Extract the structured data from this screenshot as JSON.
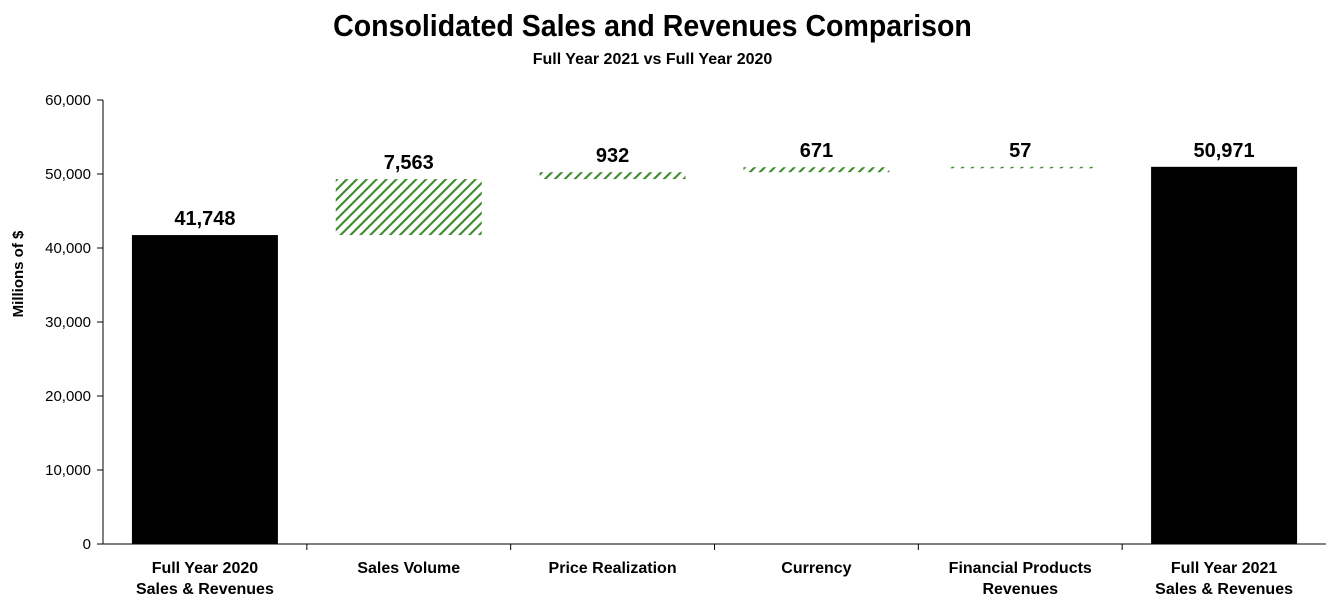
{
  "chart_data": {
    "type": "bar",
    "subtype": "waterfall",
    "title": "Consolidated Sales and Revenues Comparison",
    "subtitle": "Full Year 2021 vs Full Year 2020",
    "xlabel": "",
    "ylabel": "Millions of $",
    "ylim": [
      0,
      60000
    ],
    "yticks": [
      0,
      10000,
      20000,
      30000,
      40000,
      50000,
      60000
    ],
    "ytick_labels": [
      "0",
      "10,000",
      "20,000",
      "30,000",
      "40,000",
      "50,000",
      "60,000"
    ],
    "grid": false,
    "categories": [
      [
        "Full Year 2020",
        "Sales & Revenues"
      ],
      [
        "Sales Volume"
      ],
      [
        "Price Realization"
      ],
      [
        "Currency"
      ],
      [
        "Financial Products",
        "Revenues"
      ],
      [
        "Full Year 2021",
        "Sales & Revenues"
      ]
    ],
    "bars": [
      {
        "kind": "total",
        "start": 0,
        "end": 41748,
        "label": "41,748",
        "color": "#000000"
      },
      {
        "kind": "increase",
        "start": 41748,
        "end": 49311,
        "label": "7,563",
        "color": "#3a8a2a"
      },
      {
        "kind": "increase",
        "start": 49311,
        "end": 50243,
        "label": "932",
        "color": "#3a8a2a"
      },
      {
        "kind": "increase",
        "start": 50243,
        "end": 50914,
        "label": "671",
        "color": "#3a8a2a"
      },
      {
        "kind": "increase",
        "start": 50914,
        "end": 50971,
        "label": "57",
        "color": "#3a8a2a"
      },
      {
        "kind": "total",
        "start": 0,
        "end": 50971,
        "label": "50,971",
        "color": "#000000"
      }
    ]
  }
}
